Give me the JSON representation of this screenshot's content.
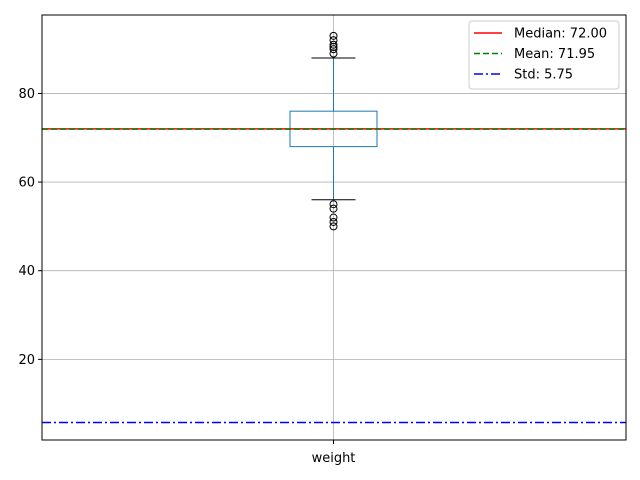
{
  "chart_data": {
    "type": "box",
    "categories": [
      "weight"
    ],
    "ylim": [
      1.8,
      97.7
    ],
    "yticks": [
      20,
      40,
      60,
      80
    ],
    "grid": true,
    "legend_position": "top-right",
    "box": {
      "q1": 68.0,
      "median": 72.0,
      "q3": 76.0,
      "whisker_low": 56.0,
      "whisker_high": 88.0,
      "outliers_high": [
        89,
        90,
        90.5,
        91,
        92,
        93
      ],
      "outliers_low": [
        55,
        54,
        52,
        51,
        50
      ],
      "color": "#1f77b4"
    },
    "reference_lines": [
      {
        "label": "Median: 72.00",
        "value": 72.0,
        "color": "#ff0000",
        "style": "solid"
      },
      {
        "label": "Mean: 71.95",
        "value": 71.95,
        "color": "#008000",
        "style": "dashed"
      },
      {
        "label": "Std: 5.75",
        "value": 5.75,
        "color": "#0000ff",
        "style": "dashdot"
      }
    ]
  }
}
